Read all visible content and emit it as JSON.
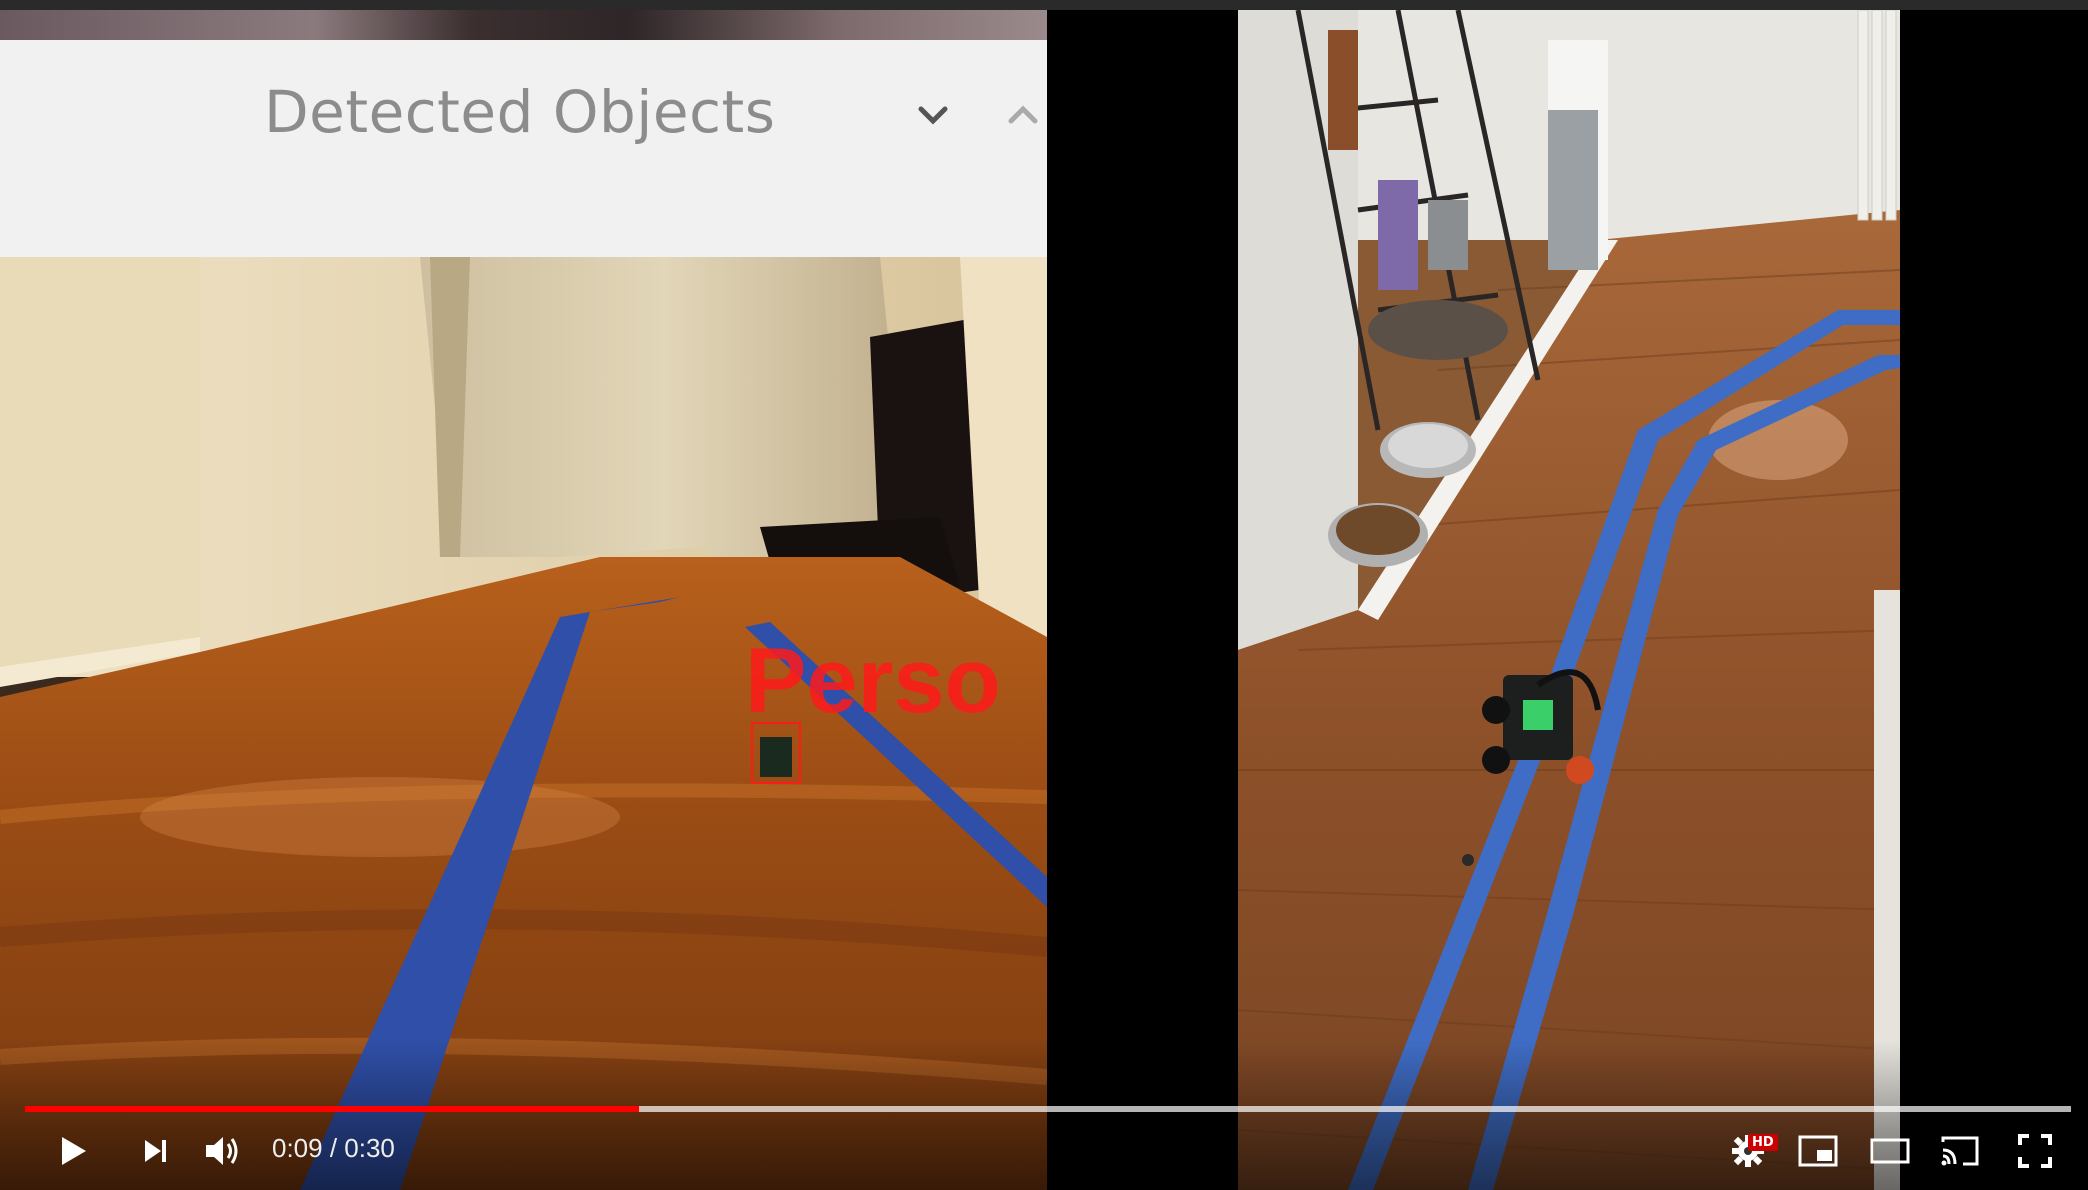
{
  "overlay": {
    "title": "Detected Objects",
    "detection_label": "Perso"
  },
  "player": {
    "current_time": "0:09",
    "duration": "0:30",
    "time_text": "0:09 / 0:30",
    "hd_badge": "HD",
    "progress_fraction": 0.3,
    "loaded_fraction": 1.0
  },
  "colors": {
    "progress_played": "#ff0000",
    "tape_blue": "#2f5fb8",
    "detection_red": "#ff1a1a"
  },
  "icons": {
    "play": "play-icon",
    "next": "next-icon",
    "volume": "volume-icon",
    "settings": "gear-icon",
    "miniplayer": "miniplayer-icon",
    "theater": "theater-icon",
    "cast": "cast-icon",
    "fullscreen": "fullscreen-icon",
    "chevron_down": "chevron-down-icon",
    "chevron_up": "chevron-up-icon"
  }
}
